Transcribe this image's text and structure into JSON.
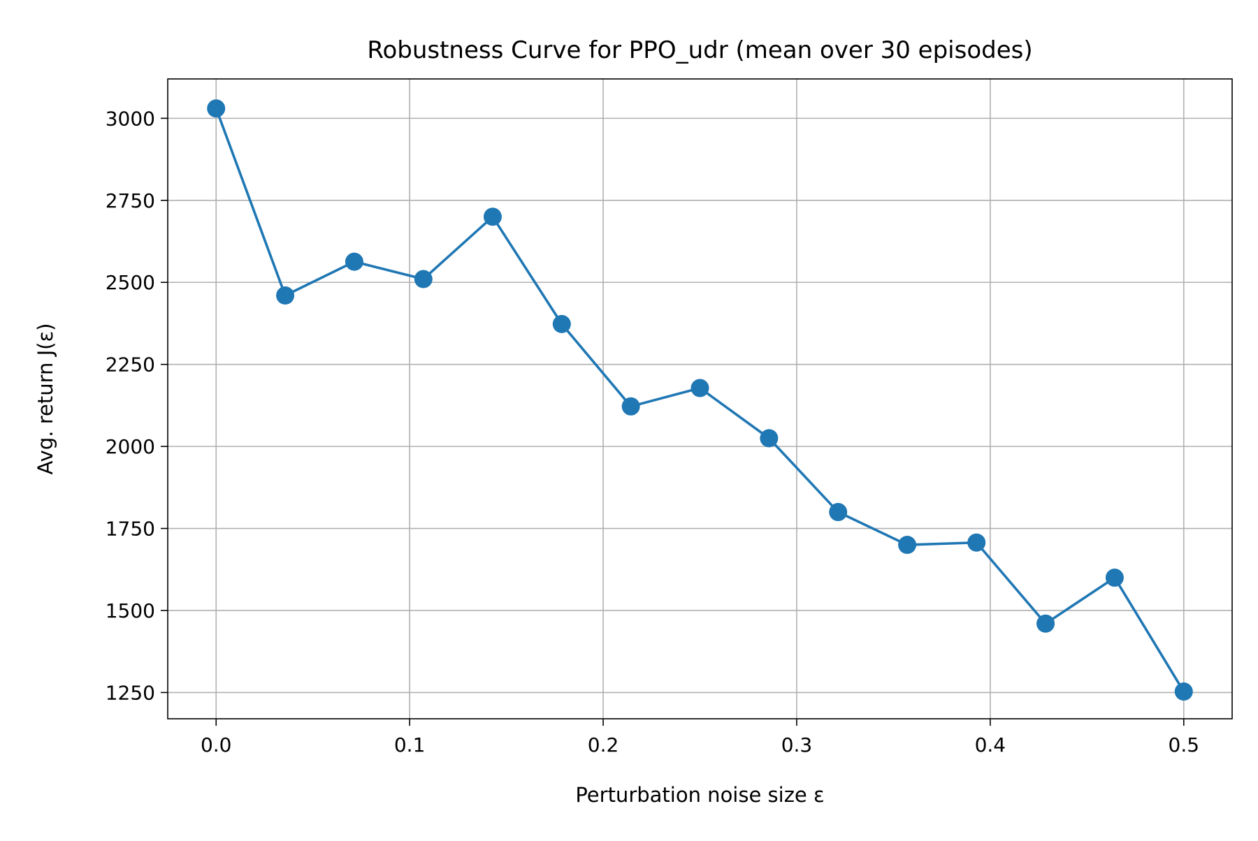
{
  "chart_data": {
    "type": "line",
    "title": "Robustness Curve for PPO_udr (mean over 30 episodes)",
    "xlabel": "Perturbation noise size ε",
    "ylabel": "Avg. return J(ε)",
    "xlim": [
      -0.025,
      0.525
    ],
    "ylim": [
      1170,
      3120
    ],
    "xticks": [
      0.0,
      0.1,
      0.2,
      0.3,
      0.4,
      0.5
    ],
    "xtick_labels": [
      "0.0",
      "0.1",
      "0.2",
      "0.3",
      "0.4",
      "0.5"
    ],
    "yticks": [
      1250,
      1500,
      1750,
      2000,
      2250,
      2500,
      2750,
      3000
    ],
    "ytick_labels": [
      "1250",
      "1500",
      "1750",
      "2000",
      "2250",
      "2500",
      "2750",
      "3000"
    ],
    "grid": true,
    "series": [
      {
        "color": "#1f77b4",
        "marker": "circle",
        "x": [
          0.0,
          0.0357,
          0.0714,
          0.1071,
          0.1429,
          0.1786,
          0.2143,
          0.25,
          0.2857,
          0.3214,
          0.3571,
          0.3929,
          0.4286,
          0.4643,
          0.5
        ],
        "y": [
          3030,
          2460,
          2563,
          2510,
          2700,
          2373,
          2122,
          2178,
          2025,
          1800,
          1700,
          1707,
          1460,
          1600,
          1253
        ]
      }
    ]
  },
  "colors": {
    "line": "#1f77b4",
    "grid": "#b0b0b0",
    "axes": "#000000"
  }
}
